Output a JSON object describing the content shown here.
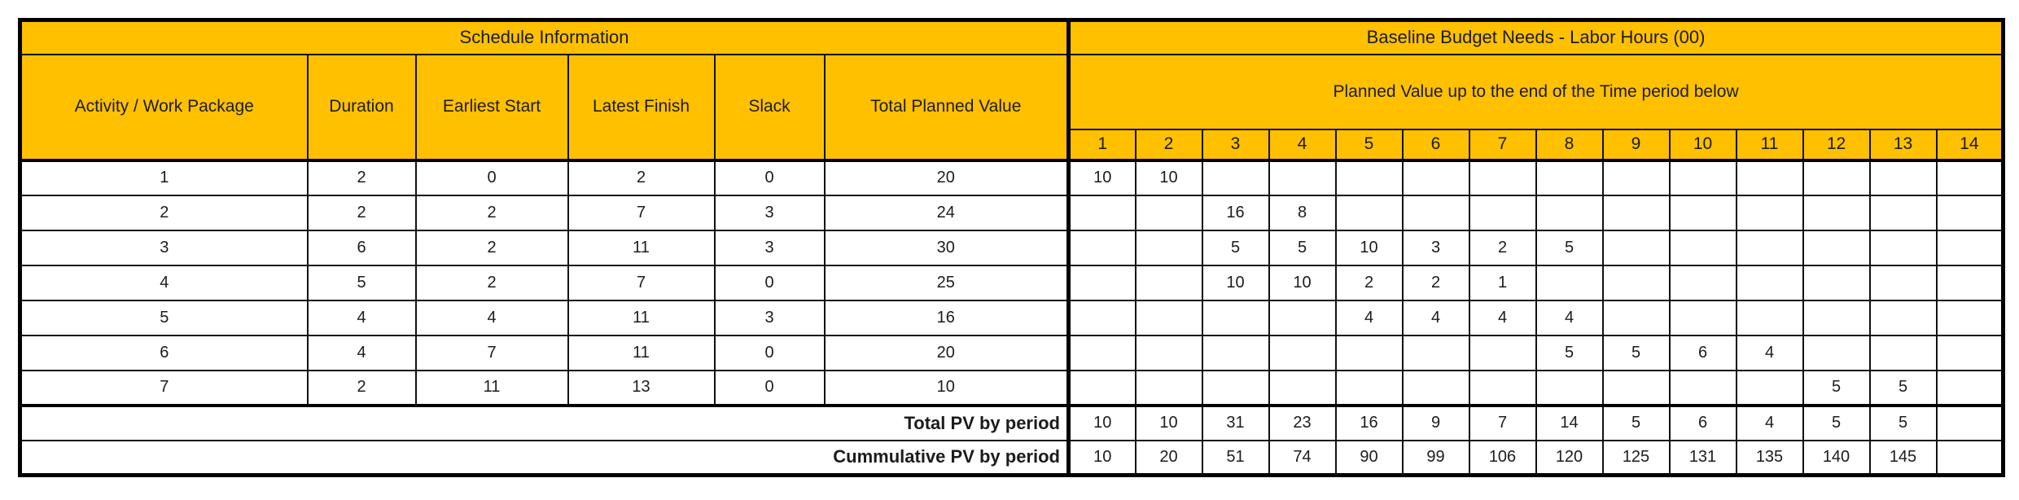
{
  "table": {
    "left_section": {
      "title": "Schedule Information",
      "columns": [
        "Activity / Work Package",
        "Duration",
        "Earliest Start",
        "Latest Finish",
        "Slack",
        "Total Planned Value"
      ]
    },
    "right_section": {
      "title": "Baseline Budget Needs - Labor Hours (00)",
      "subtitle": "Planned Value up to the end of the Time period below",
      "periods": [
        "1",
        "2",
        "3",
        "4",
        "5",
        "6",
        "7",
        "8",
        "9",
        "10",
        "11",
        "12",
        "13",
        "14"
      ]
    },
    "rows": [
      {
        "activity": "1",
        "duration": "2",
        "earliest_start": "0",
        "latest_finish": "2",
        "slack": "0",
        "total_pv": "20",
        "periods": [
          "10",
          "10",
          "",
          "",
          "",
          "",
          "",
          "",
          "",
          "",
          "",
          "",
          "",
          ""
        ]
      },
      {
        "activity": "2",
        "duration": "2",
        "earliest_start": "2",
        "latest_finish": "7",
        "slack": "3",
        "total_pv": "24",
        "periods": [
          "",
          "",
          "16",
          "8",
          "",
          "",
          "",
          "",
          "",
          "",
          "",
          "",
          "",
          ""
        ]
      },
      {
        "activity": "3",
        "duration": "6",
        "earliest_start": "2",
        "latest_finish": "11",
        "slack": "3",
        "total_pv": "30",
        "periods": [
          "",
          "",
          "5",
          "5",
          "10",
          "3",
          "2",
          "5",
          "",
          "",
          "",
          "",
          "",
          ""
        ]
      },
      {
        "activity": "4",
        "duration": "5",
        "earliest_start": "2",
        "latest_finish": "7",
        "slack": "0",
        "total_pv": "25",
        "periods": [
          "",
          "",
          "10",
          "10",
          "2",
          "2",
          "1",
          "",
          "",
          "",
          "",
          "",
          "",
          ""
        ]
      },
      {
        "activity": "5",
        "duration": "4",
        "earliest_start": "4",
        "latest_finish": "11",
        "slack": "3",
        "total_pv": "16",
        "periods": [
          "",
          "",
          "",
          "",
          "4",
          "4",
          "4",
          "4",
          "",
          "",
          "",
          "",
          "",
          ""
        ]
      },
      {
        "activity": "6",
        "duration": "4",
        "earliest_start": "7",
        "latest_finish": "11",
        "slack": "0",
        "total_pv": "20",
        "periods": [
          "",
          "",
          "",
          "",
          "",
          "",
          "",
          "5",
          "5",
          "6",
          "4",
          "",
          "",
          ""
        ]
      },
      {
        "activity": "7",
        "duration": "2",
        "earliest_start": "11",
        "latest_finish": "13",
        "slack": "0",
        "total_pv": "10",
        "periods": [
          "",
          "",
          "",
          "",
          "",
          "",
          "",
          "",
          "",
          "",
          "",
          "5",
          "5",
          ""
        ]
      }
    ],
    "totals": {
      "total_label": "Total PV by period",
      "total_values": [
        "10",
        "10",
        "31",
        "23",
        "16",
        "9",
        "7",
        "14",
        "5",
        "6",
        "4",
        "5",
        "5",
        ""
      ],
      "cumulative_label": "Cummulative PV by period",
      "cumulative_values": [
        "10",
        "20",
        "51",
        "74",
        "90",
        "99",
        "106",
        "120",
        "125",
        "131",
        "135",
        "140",
        "145",
        ""
      ]
    }
  },
  "colors": {
    "header_bg": "#FFC000",
    "border": "#000000",
    "text": "#1C1C1C"
  }
}
